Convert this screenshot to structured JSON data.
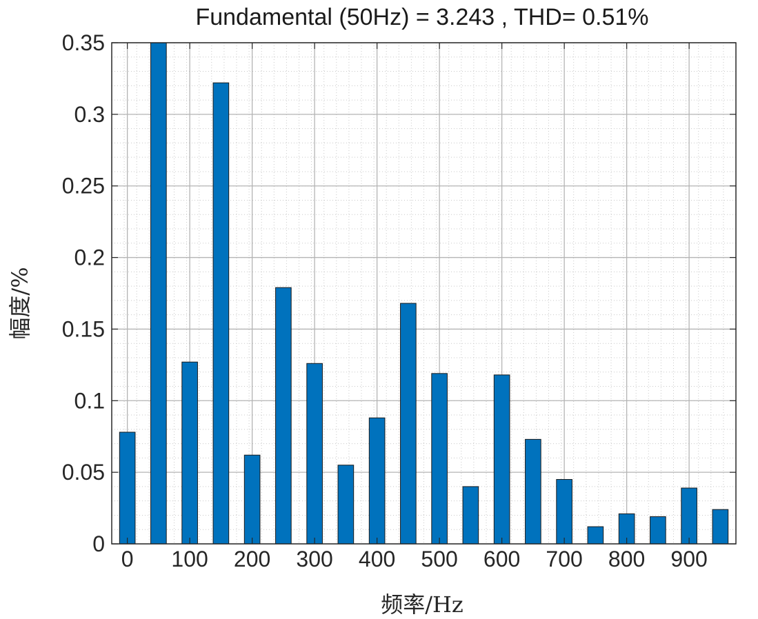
{
  "chart_data": {
    "type": "bar",
    "title": "Fundamental (50Hz) = 3.243 , THD= 0.51%",
    "xlabel": "频率/Hz",
    "ylabel": "幅度/%",
    "x": [
      0,
      50,
      100,
      150,
      200,
      250,
      300,
      350,
      400,
      450,
      500,
      550,
      600,
      650,
      700,
      750,
      800,
      850,
      900,
      950
    ],
    "values": [
      0.078,
      0.355,
      0.127,
      0.322,
      0.062,
      0.179,
      0.126,
      0.055,
      0.088,
      0.168,
      0.119,
      0.04,
      0.118,
      0.073,
      0.045,
      0.012,
      0.021,
      0.019,
      0.039,
      0.024
    ],
    "xlim": [
      -25,
      975
    ],
    "ylim": [
      0,
      0.35
    ],
    "xticks": [
      0,
      100,
      200,
      300,
      400,
      500,
      600,
      700,
      800,
      900
    ],
    "xtick_labels": [
      "0",
      "100",
      "200",
      "300",
      "400",
      "500",
      "600",
      "700",
      "800",
      "900"
    ],
    "yticks": [
      0,
      0.05,
      0.1,
      0.15,
      0.2,
      0.25,
      0.3,
      0.35
    ],
    "ytick_labels": [
      "0",
      "0.05",
      "0.1",
      "0.15",
      "0.2",
      "0.25",
      "0.3",
      "0.35"
    ],
    "grid": true,
    "minor_grid": true,
    "bar_color": "#0072BD",
    "bar_edge_color": "#1a1a1a"
  }
}
